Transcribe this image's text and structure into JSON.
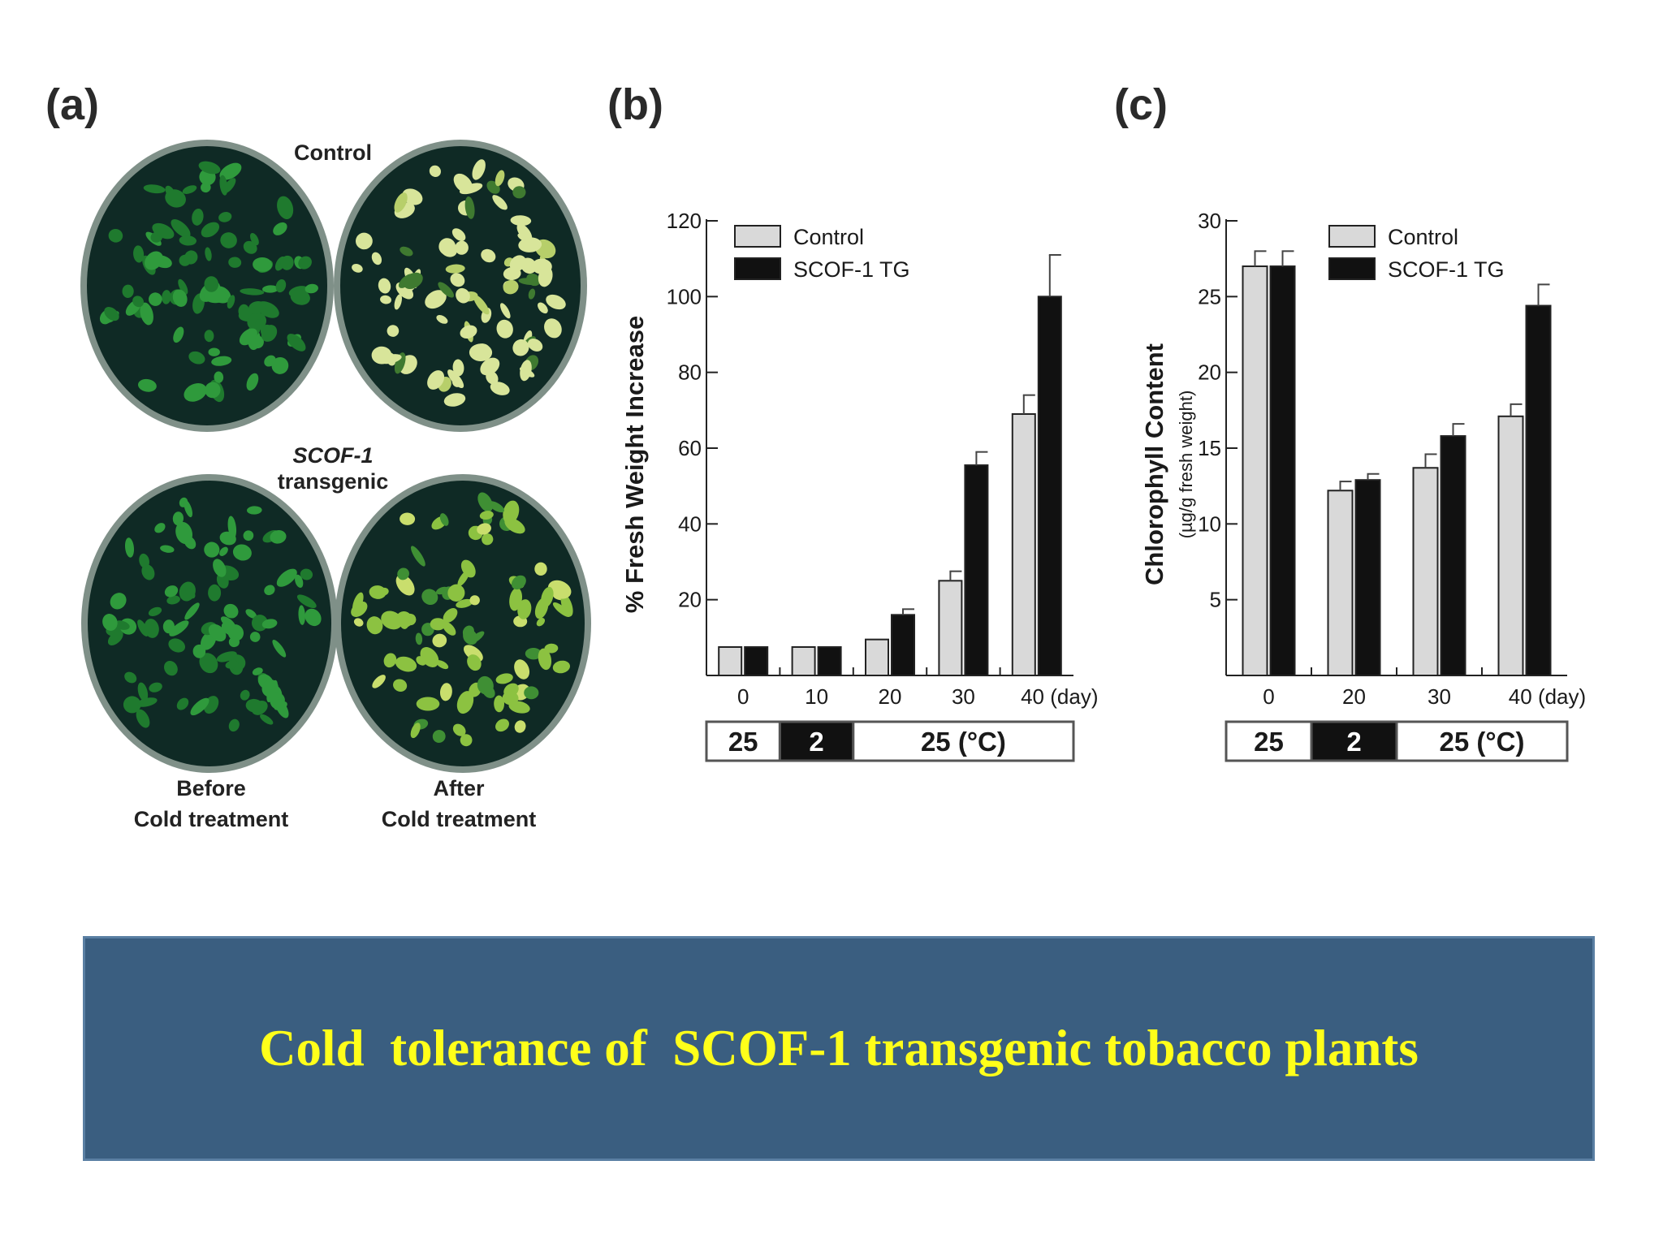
{
  "panel_a": {
    "letter": "(a)",
    "label_control": "Control",
    "label_transgenic_italic": "SCOF-1",
    "label_transgenic": "transgenic",
    "label_before_1": "Before",
    "label_before_2": "Cold treatment",
    "label_after_1": "After",
    "label_after_2": "Cold treatment",
    "colors": {
      "healthy": "#1f7a2e",
      "chlorotic": "#d8e59a",
      "plate": "#0f2a25"
    }
  },
  "panel_b": {
    "letter": "(b)"
  },
  "panel_c": {
    "letter": "(c)"
  },
  "chart_data": [
    {
      "type": "bar",
      "ylabel": "% Fresh Weight Increase",
      "xlabel": "",
      "categories": [
        "0",
        "10",
        "20",
        "30",
        "40 (day)"
      ],
      "series": [
        {
          "name": "Control",
          "color": "#d9d9d9",
          "values": [
            7.5,
            7.5,
            9.5,
            25,
            69
          ],
          "errors": [
            0,
            0,
            0,
            2.5,
            5
          ]
        },
        {
          "name": "SCOF-1 TG",
          "color": "#111111",
          "values": [
            7.5,
            7.5,
            16,
            55.5,
            100
          ],
          "errors": [
            0,
            0,
            1.5,
            3.5,
            11
          ]
        }
      ],
      "ylim": [
        0,
        120
      ],
      "yticks": [
        20,
        40,
        60,
        80,
        100,
        120
      ],
      "temperature_bar": [
        {
          "label": "25",
          "dark": false,
          "span": 1
        },
        {
          "label": "2",
          "dark": true,
          "span": 1
        },
        {
          "label": "25 (°C)",
          "dark": false,
          "span": 3
        }
      ],
      "legend": "top-left"
    },
    {
      "type": "bar",
      "ylabel": "Chlorophyll Content",
      "ylabel_sub": "(µg/g fresh weight)",
      "xlabel": "",
      "categories": [
        "0",
        "20",
        "30",
        "40 (day)"
      ],
      "series": [
        {
          "name": "Control",
          "color": "#d9d9d9",
          "values": [
            27,
            12.2,
            13.7,
            17.1
          ],
          "errors": [
            1.0,
            0.6,
            0.9,
            0.8
          ]
        },
        {
          "name": "SCOF-1 TG",
          "color": "#111111",
          "values": [
            27,
            12.9,
            15.8,
            24.4
          ],
          "errors": [
            1.0,
            0.4,
            0.8,
            1.4
          ]
        }
      ],
      "ylim": [
        0,
        30
      ],
      "yticks": [
        5,
        10,
        15,
        20,
        25,
        30
      ],
      "temperature_bar": [
        {
          "label": "25",
          "dark": false,
          "span": 1
        },
        {
          "label": "2",
          "dark": true,
          "span": 1
        },
        {
          "label": "25 (°C)",
          "dark": false,
          "span": 2
        }
      ],
      "legend": "top-left"
    }
  ],
  "caption": "Cold  tolerance of  SCOF-1 transgenic tobacco plants"
}
